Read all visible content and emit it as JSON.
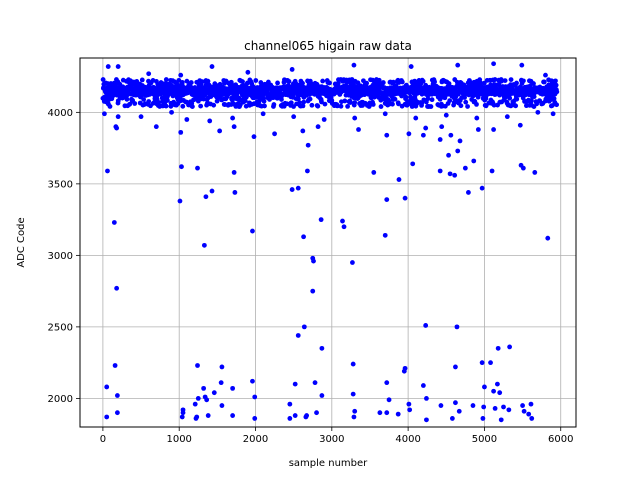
{
  "chart_data": {
    "type": "scatter",
    "title": "channel065 higain raw data",
    "xlabel": "sample number",
    "ylabel": "ADC Code",
    "xlim": [
      -300,
      6200
    ],
    "ylim": [
      1800,
      4380
    ],
    "xticks": [
      0,
      1000,
      2000,
      3000,
      4000,
      5000,
      6000
    ],
    "yticks": [
      2000,
      2500,
      3000,
      3500,
      4000
    ],
    "grid": true,
    "color": "#0000ff",
    "series": [
      {
        "name": "",
        "band": {
          "x_start": 0,
          "x_end": 5950,
          "y_low": 4040,
          "y_high": 4230,
          "center": 4150
        },
        "points": [
          [
            70,
            4320
          ],
          [
            200,
            4320
          ],
          [
            600,
            4270
          ],
          [
            1020,
            4260
          ],
          [
            1430,
            4320
          ],
          [
            1900,
            4280
          ],
          [
            2480,
            4300
          ],
          [
            3290,
            4330
          ],
          [
            4040,
            4320
          ],
          [
            4650,
            4330
          ],
          [
            5120,
            4340
          ],
          [
            5490,
            4330
          ],
          [
            5800,
            4260
          ],
          [
            20,
            3990
          ],
          [
            200,
            3970
          ],
          [
            500,
            3970
          ],
          [
            900,
            4000
          ],
          [
            1100,
            3950
          ],
          [
            1400,
            3940
          ],
          [
            1700,
            3960
          ],
          [
            2100,
            3990
          ],
          [
            2500,
            3970
          ],
          [
            2900,
            3950
          ],
          [
            3300,
            3960
          ],
          [
            3700,
            3990
          ],
          [
            4100,
            3960
          ],
          [
            4500,
            3980
          ],
          [
            4900,
            3960
          ],
          [
            5300,
            3970
          ],
          [
            5700,
            4000
          ],
          [
            5900,
            3990
          ],
          [
            170,
            3900
          ],
          [
            180,
            3890
          ],
          [
            700,
            3900
          ],
          [
            1020,
            3860
          ],
          [
            1530,
            3870
          ],
          [
            1720,
            3900
          ],
          [
            1980,
            3830
          ],
          [
            2250,
            3850
          ],
          [
            2620,
            3870
          ],
          [
            2820,
            3900
          ],
          [
            3350,
            3880
          ],
          [
            3720,
            3840
          ],
          [
            4010,
            3850
          ],
          [
            4230,
            3890
          ],
          [
            4440,
            3900
          ],
          [
            4560,
            3840
          ],
          [
            4920,
            3880
          ],
          [
            5120,
            3880
          ],
          [
            5470,
            3910
          ],
          [
            4200,
            3840
          ],
          [
            4420,
            3810
          ],
          [
            4680,
            3800
          ],
          [
            4530,
            3700
          ],
          [
            4650,
            3730
          ],
          [
            4860,
            3660
          ],
          [
            60,
            3590
          ],
          [
            1030,
            3620
          ],
          [
            1240,
            3610
          ],
          [
            1430,
            3450
          ],
          [
            1350,
            3410
          ],
          [
            1720,
            3580
          ],
          [
            1730,
            3440
          ],
          [
            2680,
            3590
          ],
          [
            2480,
            3460
          ],
          [
            2560,
            3470
          ],
          [
            2690,
            3770
          ],
          [
            3550,
            3580
          ],
          [
            3720,
            3390
          ],
          [
            3880,
            3530
          ],
          [
            3960,
            3400
          ],
          [
            4060,
            3640
          ],
          [
            4420,
            3590
          ],
          [
            4550,
            3570
          ],
          [
            4610,
            3560
          ],
          [
            4750,
            3610
          ],
          [
            4790,
            3440
          ],
          [
            4970,
            3470
          ],
          [
            5100,
            3590
          ],
          [
            5480,
            3630
          ],
          [
            5510,
            3610
          ],
          [
            5660,
            3580
          ],
          [
            1010,
            3380
          ],
          [
            150,
            3230
          ],
          [
            1330,
            3070
          ],
          [
            1960,
            3170
          ],
          [
            2630,
            3130
          ],
          [
            2860,
            3250
          ],
          [
            3140,
            3240
          ],
          [
            3160,
            3200
          ],
          [
            3700,
            3140
          ],
          [
            2750,
            2980
          ],
          [
            2760,
            2960
          ],
          [
            3270,
            2950
          ],
          [
            2750,
            2750
          ],
          [
            5830,
            3120
          ],
          [
            180,
            2770
          ],
          [
            4230,
            2510
          ],
          [
            2640,
            2500
          ],
          [
            4640,
            2500
          ],
          [
            2560,
            2440
          ],
          [
            2870,
            2350
          ],
          [
            5180,
            2350
          ],
          [
            5330,
            2360
          ],
          [
            160,
            2230
          ],
          [
            1240,
            2230
          ],
          [
            1560,
            2220
          ],
          [
            3280,
            2240
          ],
          [
            4620,
            2220
          ],
          [
            4970,
            2250
          ],
          [
            5080,
            2250
          ],
          [
            3960,
            2210
          ],
          [
            3950,
            2190
          ],
          [
            50,
            2080
          ],
          [
            1550,
            2110
          ],
          [
            1700,
            2070
          ],
          [
            1960,
            2120
          ],
          [
            2520,
            2100
          ],
          [
            2780,
            2110
          ],
          [
            3720,
            2110
          ],
          [
            4200,
            2090
          ],
          [
            5000,
            2080
          ],
          [
            5170,
            2100
          ],
          [
            5200,
            2040
          ],
          [
            5120,
            2050
          ],
          [
            1320,
            2070
          ],
          [
            1460,
            2040
          ],
          [
            190,
            2020
          ],
          [
            1250,
            2000
          ],
          [
            1340,
            2010
          ],
          [
            1360,
            1990
          ],
          [
            1990,
            2010
          ],
          [
            2870,
            2020
          ],
          [
            3280,
            2030
          ],
          [
            3750,
            1990
          ],
          [
            4240,
            2000
          ],
          [
            1050,
            1920
          ],
          [
            1210,
            1960
          ],
          [
            1560,
            1950
          ],
          [
            2450,
            1960
          ],
          [
            3300,
            1910
          ],
          [
            4010,
            1960
          ],
          [
            4020,
            1920
          ],
          [
            4430,
            1950
          ],
          [
            4620,
            1970
          ],
          [
            4850,
            1950
          ],
          [
            4990,
            1940
          ],
          [
            5500,
            1950
          ],
          [
            5610,
            1960
          ],
          [
            5140,
            1930
          ],
          [
            5250,
            1940
          ],
          [
            190,
            1900
          ],
          [
            1050,
            1900
          ],
          [
            2800,
            1900
          ],
          [
            3720,
            1900
          ],
          [
            3870,
            1890
          ],
          [
            4670,
            1910
          ],
          [
            5320,
            1920
          ],
          [
            5520,
            1910
          ],
          [
            5580,
            1890
          ],
          [
            1230,
            1870
          ],
          [
            1380,
            1880
          ],
          [
            1700,
            1880
          ],
          [
            2520,
            1880
          ],
          [
            3630,
            1900
          ],
          [
            50,
            1870
          ],
          [
            1040,
            1870
          ],
          [
            1220,
            1860
          ],
          [
            1990,
            1860
          ],
          [
            2450,
            1860
          ],
          [
            2660,
            1870
          ],
          [
            2670,
            1880
          ],
          [
            3290,
            1870
          ],
          [
            4240,
            1850
          ],
          [
            4580,
            1860
          ],
          [
            4980,
            1860
          ],
          [
            5220,
            1850
          ],
          [
            5620,
            1860
          ]
        ]
      }
    ]
  }
}
